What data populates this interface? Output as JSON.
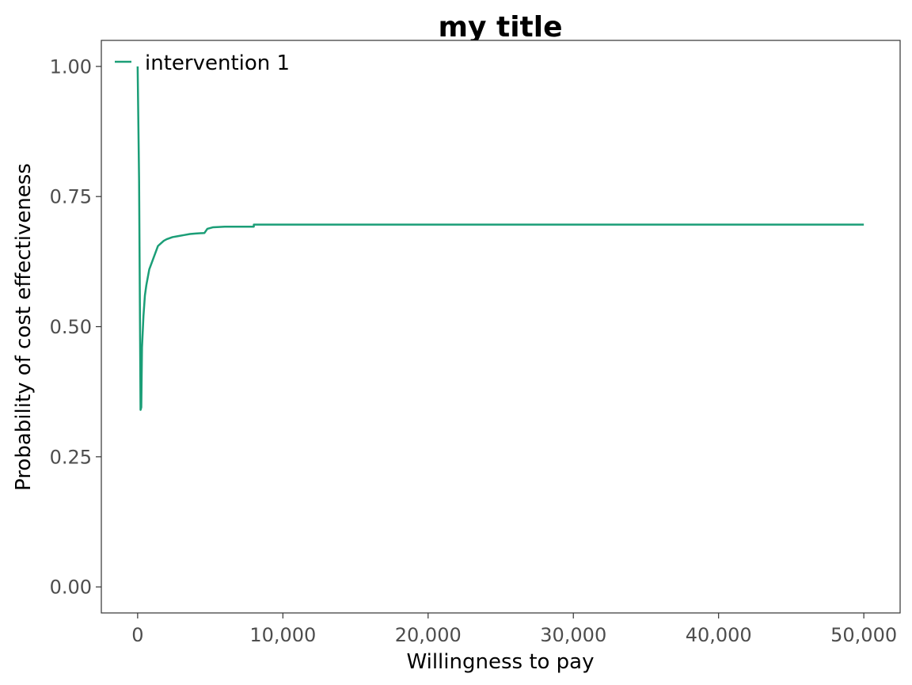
{
  "chart_data": {
    "type": "line",
    "title": "my title",
    "xlabel": "Willingness to pay",
    "ylabel": "Probability of cost effectiveness",
    "xlim": [
      -2500,
      52500
    ],
    "ylim": [
      -0.05,
      1.05
    ],
    "x_ticks": [
      0,
      10000,
      20000,
      30000,
      40000,
      50000
    ],
    "x_tick_labels": [
      "0",
      "10,000",
      "20,000",
      "30,000",
      "40,000",
      "50,000"
    ],
    "y_ticks": [
      0,
      0.25,
      0.5,
      0.75,
      1.0
    ],
    "y_tick_labels": [
      "0.00",
      "0.25",
      "0.50",
      "0.75",
      "1.00"
    ],
    "grid": false,
    "legend_position": "top-left",
    "series": [
      {
        "name": "intervention 1",
        "color": "#1b9e77",
        "x": [
          0,
          100,
          200,
          250,
          300,
          400,
          500,
          600,
          800,
          1000,
          1200,
          1400,
          1600,
          1800,
          2000,
          2400,
          2800,
          3200,
          3600,
          4000,
          4600,
          4800,
          5200,
          6000,
          7000,
          7999,
          8000,
          9000,
          15000,
          25000,
          35000,
          45000,
          50000
        ],
        "y": [
          1.0,
          0.78,
          0.34,
          0.345,
          0.46,
          0.52,
          0.56,
          0.58,
          0.61,
          0.625,
          0.64,
          0.655,
          0.66,
          0.665,
          0.668,
          0.672,
          0.674,
          0.676,
          0.678,
          0.679,
          0.68,
          0.688,
          0.691,
          0.692,
          0.692,
          0.692,
          0.696,
          0.696,
          0.696,
          0.696,
          0.696,
          0.696,
          0.696
        ]
      }
    ]
  }
}
